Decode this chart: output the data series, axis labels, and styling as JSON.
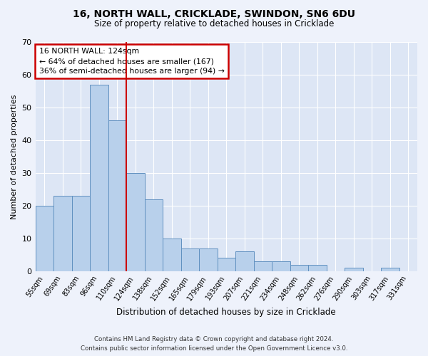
{
  "title": "16, NORTH WALL, CRICKLADE, SWINDON, SN6 6DU",
  "subtitle": "Size of property relative to detached houses in Cricklade",
  "xlabel": "Distribution of detached houses by size in Cricklade",
  "ylabel": "Number of detached properties",
  "categories": [
    "55sqm",
    "69sqm",
    "83sqm",
    "96sqm",
    "110sqm",
    "124sqm",
    "138sqm",
    "152sqm",
    "165sqm",
    "179sqm",
    "193sqm",
    "207sqm",
    "221sqm",
    "234sqm",
    "248sqm",
    "262sqm",
    "276sqm",
    "290sqm",
    "303sqm",
    "317sqm",
    "331sqm"
  ],
  "values": [
    20,
    23,
    23,
    57,
    46,
    30,
    22,
    10,
    7,
    7,
    4,
    6,
    3,
    3,
    2,
    2,
    0,
    1,
    0,
    1,
    0
  ],
  "bar_color": "#b8d0eb",
  "bar_edge_color": "#6090c0",
  "highlight_index": 5,
  "highlight_line_color": "#cc0000",
  "ylim": [
    0,
    70
  ],
  "yticks": [
    0,
    10,
    20,
    30,
    40,
    50,
    60,
    70
  ],
  "annotation_text": "16 NORTH WALL: 124sqm\n← 64% of detached houses are smaller (167)\n36% of semi-detached houses are larger (94) →",
  "annotation_box_color": "#cc0000",
  "footer1": "Contains HM Land Registry data © Crown copyright and database right 2024.",
  "footer2": "Contains public sector information licensed under the Open Government Licence v3.0.",
  "bg_color": "#eef2fb",
  "plot_bg_color": "#dde6f5"
}
